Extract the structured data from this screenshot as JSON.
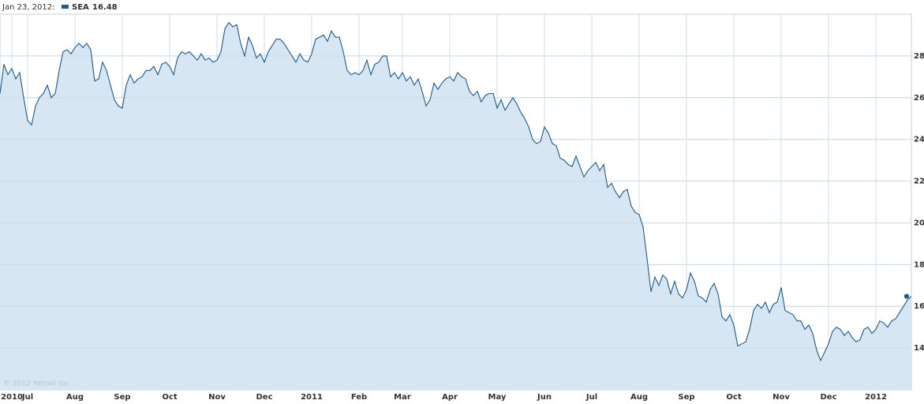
{
  "chart_data": {
    "type": "area",
    "date_label": "Jan 23, 2012:",
    "watermark": "© 2012 Yahoo! Inc.",
    "grid": true,
    "area_color": "#d6e6f2",
    "ylim": [
      12,
      30
    ],
    "yticks": [
      14,
      16,
      18,
      20,
      22,
      24,
      26,
      28
    ],
    "categories": [
      null,
      null,
      null,
      "2010",
      null,
      null,
      null,
      "Jul",
      null,
      null,
      null,
      null,
      null,
      null,
      null,
      null,
      null,
      null,
      null,
      "Aug",
      null,
      null,
      null,
      null,
      null,
      null,
      null,
      null,
      null,
      null,
      null,
      "Sep",
      null,
      null,
      null,
      null,
      null,
      null,
      null,
      null,
      null,
      null,
      null,
      "Oct",
      null,
      null,
      null,
      null,
      null,
      null,
      null,
      null,
      null,
      null,
      null,
      "Nov",
      null,
      null,
      null,
      null,
      null,
      null,
      null,
      null,
      null,
      null,
      null,
      "Dec",
      null,
      null,
      null,
      null,
      null,
      null,
      null,
      null,
      null,
      null,
      null,
      "2011",
      null,
      null,
      null,
      null,
      null,
      null,
      null,
      null,
      null,
      null,
      null,
      "Feb",
      null,
      null,
      null,
      null,
      null,
      null,
      null,
      null,
      null,
      null,
      "Mar",
      null,
      null,
      null,
      null,
      null,
      null,
      null,
      null,
      null,
      null,
      null,
      "Apr",
      null,
      null,
      null,
      null,
      null,
      null,
      null,
      null,
      null,
      null,
      null,
      "May",
      null,
      null,
      null,
      null,
      null,
      null,
      null,
      null,
      null,
      null,
      null,
      "Jun",
      null,
      null,
      null,
      null,
      null,
      null,
      null,
      null,
      null,
      null,
      null,
      "Jul",
      null,
      null,
      null,
      null,
      null,
      null,
      null,
      null,
      null,
      null,
      null,
      "Aug",
      null,
      null,
      null,
      null,
      null,
      null,
      null,
      null,
      null,
      null,
      null,
      "Sep",
      null,
      null,
      null,
      null,
      null,
      null,
      null,
      null,
      null,
      null,
      null,
      "Oct",
      null,
      null,
      null,
      null,
      null,
      null,
      null,
      null,
      null,
      null,
      null,
      "Nov",
      null,
      null,
      null,
      null,
      null,
      null,
      null,
      null,
      null,
      null,
      null,
      "Dec",
      null,
      null,
      null,
      null,
      null,
      null,
      null,
      null,
      null,
      null,
      null,
      "2012",
      null,
      null,
      null,
      null,
      null,
      null,
      null,
      null,
      null
    ],
    "series": [
      {
        "name": "SEA",
        "color": "#1d5a8e",
        "values": [
          26.2,
          27.6,
          27.1,
          27.4,
          26.9,
          27.2,
          26.0,
          24.9,
          24.7,
          25.6,
          26.0,
          26.2,
          26.6,
          26.0,
          26.2,
          27.3,
          28.2,
          28.3,
          28.1,
          28.4,
          28.6,
          28.4,
          28.6,
          28.3,
          26.8,
          26.9,
          27.7,
          27.3,
          26.6,
          25.9,
          25.6,
          25.5,
          26.6,
          27.1,
          26.7,
          26.9,
          27.0,
          27.3,
          27.3,
          27.5,
          27.1,
          27.6,
          27.7,
          27.5,
          27.1,
          27.9,
          28.2,
          28.1,
          28.2,
          28.0,
          27.8,
          28.1,
          27.8,
          27.9,
          27.7,
          27.8,
          28.2,
          29.3,
          29.6,
          29.4,
          29.5,
          28.6,
          28.0,
          28.9,
          28.5,
          27.9,
          28.1,
          27.7,
          28.2,
          28.5,
          28.8,
          28.8,
          28.6,
          28.3,
          28.0,
          27.7,
          28.1,
          27.8,
          27.7,
          28.1,
          28.8,
          28.9,
          29.0,
          28.7,
          29.2,
          28.9,
          28.9,
          28.2,
          27.3,
          27.1,
          27.2,
          27.1,
          27.3,
          27.8,
          27.1,
          27.6,
          27.7,
          28.0,
          28.0,
          27.0,
          27.2,
          26.9,
          27.2,
          26.8,
          27.0,
          26.6,
          26.9,
          26.3,
          25.6,
          25.9,
          26.7,
          26.4,
          26.7,
          26.9,
          27.0,
          26.8,
          27.2,
          27.0,
          26.9,
          26.3,
          26.1,
          26.3,
          25.8,
          26.1,
          26.2,
          26.2,
          25.5,
          25.9,
          25.4,
          25.7,
          26.0,
          25.7,
          25.3,
          25.0,
          24.6,
          24.0,
          23.8,
          23.9,
          24.6,
          24.3,
          23.8,
          23.7,
          23.1,
          23.0,
          22.8,
          22.7,
          23.2,
          22.7,
          22.2,
          22.5,
          22.7,
          22.9,
          22.5,
          22.8,
          21.7,
          21.9,
          21.5,
          21.2,
          21.5,
          21.6,
          20.8,
          20.5,
          20.4,
          19.8,
          18.3,
          16.7,
          17.4,
          17.0,
          17.5,
          17.3,
          16.6,
          17.2,
          16.6,
          16.4,
          16.8,
          17.6,
          17.2,
          16.5,
          16.4,
          16.2,
          16.8,
          17.1,
          16.6,
          15.5,
          15.3,
          15.6,
          15.1,
          14.1,
          14.2,
          14.3,
          14.9,
          15.8,
          16.1,
          15.9,
          16.2,
          15.7,
          16.1,
          16.2,
          16.9,
          15.8,
          15.7,
          15.6,
          15.3,
          15.3,
          14.9,
          15.1,
          14.7,
          13.9,
          13.4,
          13.8,
          14.2,
          14.8,
          15.0,
          14.9,
          14.6,
          14.8,
          14.5,
          14.3,
          14.4,
          14.9,
          15.0,
          14.7,
          14.9,
          15.3,
          15.2,
          15.0,
          15.3,
          15.4,
          15.7,
          16.0,
          16.3,
          16.48
        ]
      }
    ]
  }
}
